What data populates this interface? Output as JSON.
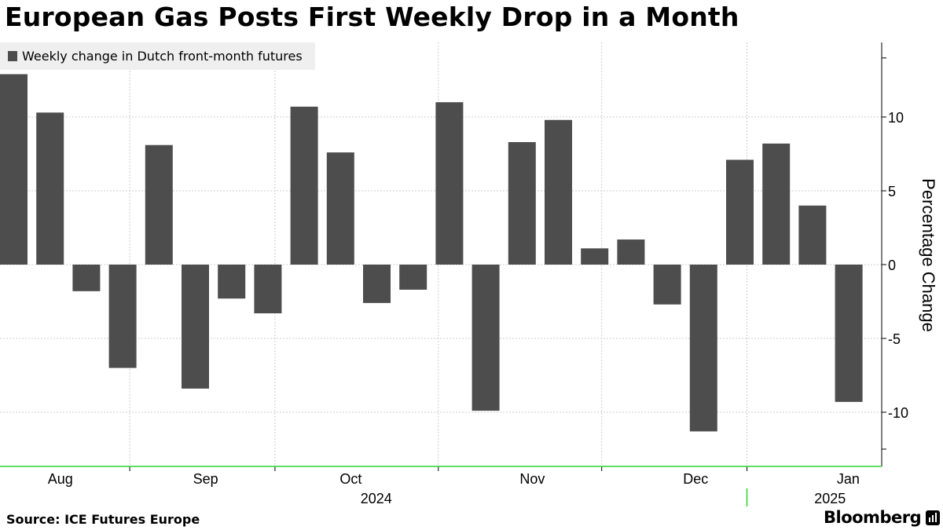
{
  "title": "European Gas Posts First Weekly Drop in a Month",
  "source": "Source: ICE Futures Europe",
  "brand": "Bloomberg",
  "colors": {
    "bar": "#4d4d4d",
    "grid": "#cccccc",
    "axis_line": "#2bd52b",
    "legend_bg": "#efefef"
  },
  "chart_data": {
    "type": "bar",
    "title": "European Gas Posts First Weekly Drop in a Month",
    "legend": [
      "Weekly change in Dutch front-month futures"
    ],
    "ylabel": "Percentage Change",
    "ylim": [
      -14,
      15
    ],
    "yticks": [
      -10,
      -5,
      0,
      5,
      10
    ],
    "grid": true,
    "series": [
      {
        "name": "Weekly change in Dutch front-month futures",
        "values": [
          12.9,
          10.3,
          -1.8,
          -7.0,
          8.1,
          -8.4,
          -2.3,
          -3.3,
          10.7,
          7.6,
          -2.6,
          -1.7,
          11.0,
          -9.9,
          8.3,
          9.8,
          1.1,
          1.7,
          -2.7,
          -11.3,
          7.1,
          8.2,
          4.0,
          -9.3
        ]
      }
    ],
    "x_month_labels": [
      {
        "label": "Aug",
        "week": 1.5
      },
      {
        "label": "Sep",
        "week": 5.5
      },
      {
        "label": "Oct",
        "week": 9.5
      },
      {
        "label": "Nov",
        "week": 14.5
      },
      {
        "label": "Dec",
        "week": 19.0
      },
      {
        "label": "Jan",
        "week": 23.2
      }
    ],
    "month_boundaries": [
      3.5,
      7.5,
      12.0,
      16.5,
      20.5
    ],
    "year_labels": [
      {
        "label": "2024",
        "week": 10.2
      },
      {
        "label": "2025",
        "week": 22.7
      }
    ],
    "year_boundary": 20.5
  }
}
